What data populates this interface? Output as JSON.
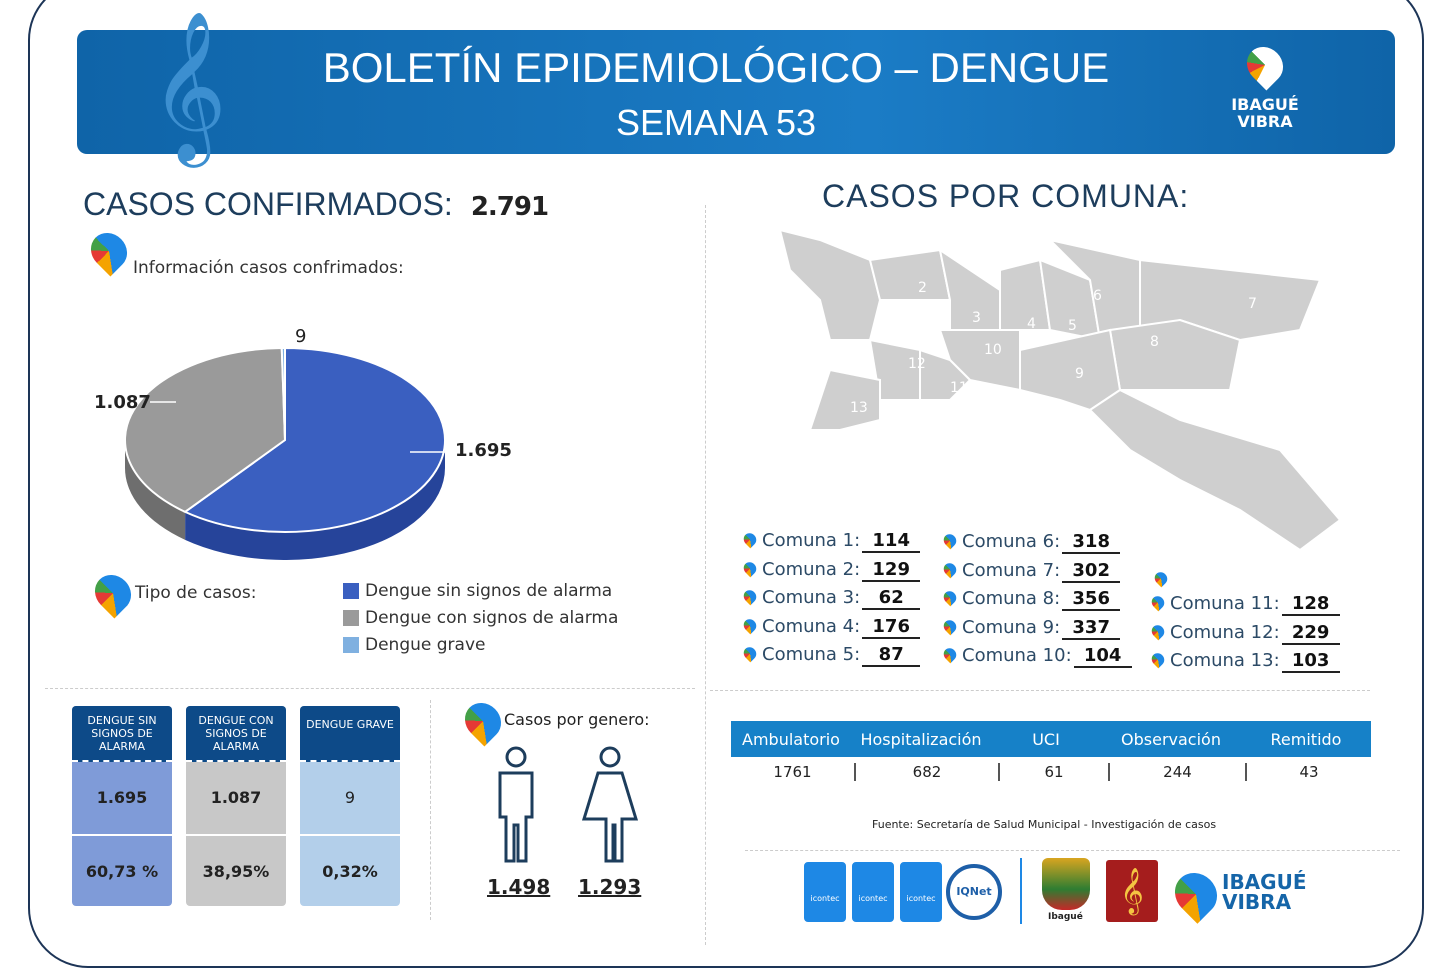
{
  "header": {
    "title": "BOLETÍN EPIDEMIOLÓGICO  – DENGUE",
    "subtitle": "SEMANA 53",
    "brand": "IBAGUÉ VIBRA"
  },
  "confirmed": {
    "label": "CASOS CONFIRMADOS:",
    "value": "2.791",
    "info_label": "Información  casos confrimados:"
  },
  "chart_data": {
    "type": "pie",
    "categories": [
      "Dengue  sin signos de alarma",
      "Dengue  con signos de alarma",
      "Dengue grave"
    ],
    "values": [
      1695,
      1087,
      9
    ],
    "data_labels": [
      "1.695",
      "1.087",
      "9"
    ],
    "colors": [
      "#3a5fc0",
      "#9a9a9a",
      "#7fb0e0"
    ],
    "legend_title": "Tipo de casos:",
    "legend_position": "bottom"
  },
  "types_table": {
    "columns": [
      {
        "header": "DENGUE SIN SIGNOS DE ALARMA",
        "count": "1.695",
        "percent": "60,73 %",
        "color": "#7f9bd8"
      },
      {
        "header": "DENGUE CON SIGNOS DE ALARMA",
        "count": "1.087",
        "percent": "38,95%",
        "color": "#c8c8c8"
      },
      {
        "header": "DENGUE GRAVE",
        "count": "9",
        "percent": "0,32%",
        "color": "#b3cfea"
      }
    ]
  },
  "gender": {
    "label": "Casos por genero:",
    "male": "1.498",
    "female": "1.293"
  },
  "comunas": {
    "title": "CASOS POR COMUNA:",
    "items": [
      {
        "label": "Comuna 1:",
        "value": "114"
      },
      {
        "label": "Comuna 2:",
        "value": "129"
      },
      {
        "label": "Comuna 3:",
        "value": "62"
      },
      {
        "label": "Comuna 4:",
        "value": "176"
      },
      {
        "label": "Comuna 5:",
        "value": "87"
      },
      {
        "label": "Comuna 6:",
        "value": "318"
      },
      {
        "label": "Comuna 7:",
        "value": "302"
      },
      {
        "label": "Comuna 8:",
        "value": "356"
      },
      {
        "label": "Comuna 9:",
        "value": "337"
      },
      {
        "label": "Comuna 10:",
        "value": "104"
      },
      {
        "label": "Comuna 11:",
        "value": "128"
      },
      {
        "label": "Comuna 12:",
        "value": "229"
      },
      {
        "label": "Comuna 13:",
        "value": "103"
      }
    ],
    "map_labels": [
      "1",
      "2",
      "3",
      "4",
      "5",
      "6",
      "7",
      "8",
      "9",
      "10",
      "11",
      "12",
      "13"
    ]
  },
  "care_table": {
    "headers": [
      "Ambulatorio",
      "Hospitalización",
      "UCI",
      "Observación",
      "Remitido"
    ],
    "values": [
      "1761",
      "682",
      "61",
      "244",
      "43"
    ]
  },
  "source": "Fuente: Secretaría de Salud Municipal - Investigación de casos",
  "footer_logos": {
    "icontec": [
      "icontec",
      "icontec",
      "icontec"
    ],
    "iqnet": "IQNet",
    "alcaldia": "Ibagué",
    "brand": "IBAGUÉ VIBRA"
  }
}
